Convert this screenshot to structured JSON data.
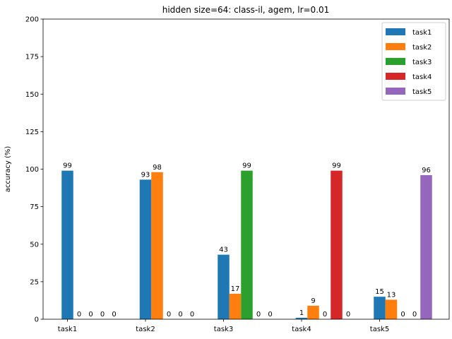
{
  "chart_data": {
    "type": "bar",
    "title": "hidden size=64: class-il, agem, lr=0.01",
    "xlabel": "",
    "ylabel": "accuracy (%)",
    "ylim": [
      0,
      200
    ],
    "yticks": [
      0,
      25,
      50,
      75,
      100,
      125,
      150,
      175,
      200
    ],
    "categories": [
      "task1",
      "task2",
      "task3",
      "task4",
      "task5"
    ],
    "series": [
      {
        "name": "task1",
        "color": "#1f77b4",
        "values": [
          99,
          93,
          43,
          1,
          15
        ]
      },
      {
        "name": "task2",
        "color": "#ff7f0e",
        "values": [
          0,
          98,
          17,
          9,
          13
        ]
      },
      {
        "name": "task3",
        "color": "#2ca02c",
        "values": [
          0,
          0,
          99,
          0,
          0
        ]
      },
      {
        "name": "task4",
        "color": "#d62728",
        "values": [
          0,
          0,
          0,
          99,
          0
        ]
      },
      {
        "name": "task5",
        "color": "#9467bd",
        "values": [
          0,
          0,
          0,
          0,
          96
        ]
      }
    ],
    "grid": false,
    "legend_position": "top-right"
  }
}
